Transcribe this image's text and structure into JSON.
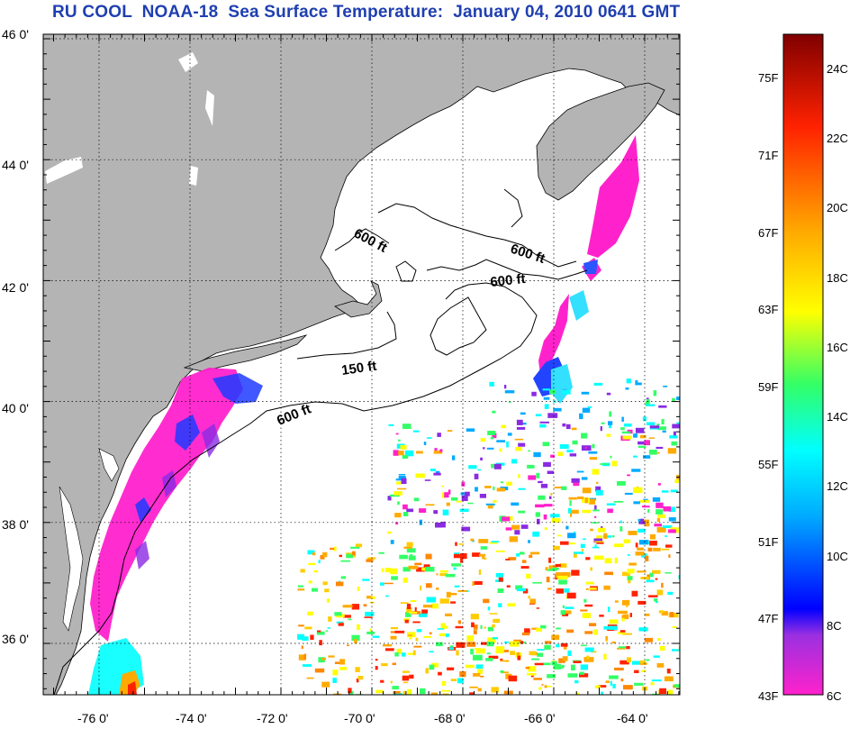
{
  "title": "RU COOL  NOAA-18  Sea Surface Temperature:  January 04, 2010 0641 GMT",
  "map": {
    "lat_ticks": [
      "46 0'",
      "44 0'",
      "42 0'",
      "40 0'",
      "38 0'",
      "36 0'"
    ],
    "lon_ticks": [
      "-76 0'",
      "-74 0'",
      "-72 0'",
      "-70 0'",
      "-68 0'",
      "-66 0'",
      "-64 0'"
    ],
    "lat_values": [
      46,
      44,
      42,
      40,
      38,
      36
    ],
    "lon_values": [
      -76,
      -74,
      -72,
      -70,
      -68,
      -66,
      -64
    ],
    "lat_range": [
      35,
      46.1
    ],
    "lon_range": [
      -77,
      -63
    ],
    "land_color": "#b4b4b4",
    "contour_labels": [
      {
        "text": "600 ft"
      },
      {
        "text": "600 ft"
      },
      {
        "text": "600 ft"
      },
      {
        "text": "150 ft"
      },
      {
        "text": "600 ft"
      }
    ]
  },
  "colorbar": {
    "fahrenheit_labels": [
      "75F",
      "71F",
      "67F",
      "63F",
      "59F",
      "55F",
      "51F",
      "47F",
      "43F"
    ],
    "celsius_labels": [
      "24C",
      "22C",
      "20C",
      "18C",
      "16C",
      "14C",
      "12C",
      "10C",
      "8C",
      "6C"
    ],
    "gradient_colors": [
      "#ff22cc",
      "#8a2be2",
      "#0000ff",
      "#00aaff",
      "#00ffff",
      "#33ff66",
      "#ffff00",
      "#ffaa00",
      "#ff2200",
      "#800000"
    ]
  }
}
